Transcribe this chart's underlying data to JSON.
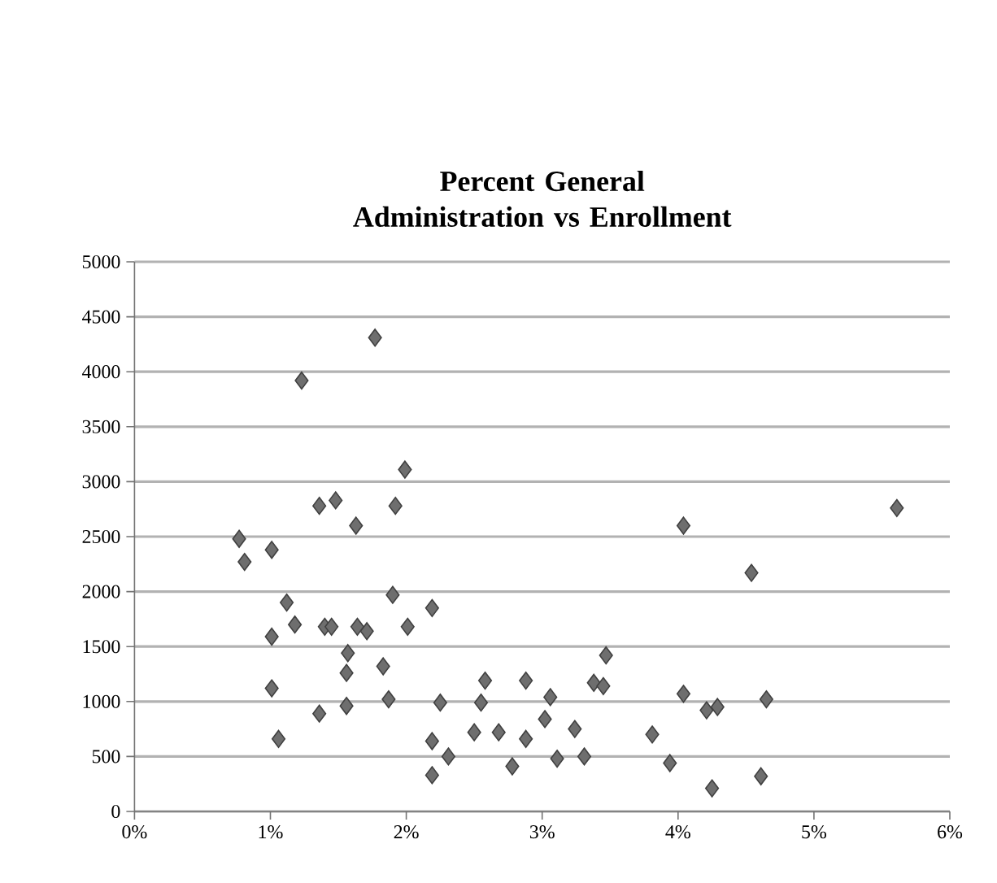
{
  "chart_data": {
    "type": "scatter",
    "title": "Percent General Administration vs Enrollment",
    "x": [
      1.77,
      1.23,
      1.99,
      1.36,
      1.48,
      1.92,
      1.63,
      0.77,
      1.01,
      0.81,
      1.9,
      2.19,
      1.12,
      1.18,
      1.01,
      1.4,
      1.45,
      1.64,
      1.71,
      2.01,
      1.57,
      1.83,
      1.56,
      1.01,
      1.87,
      2.25,
      1.36,
      1.56,
      2.55,
      2.58,
      2.88,
      3.06,
      1.06,
      2.19,
      2.31,
      2.5,
      2.68,
      2.88,
      2.78,
      2.19,
      3.02,
      3.11,
      3.24,
      3.31,
      3.38,
      3.45,
      3.47,
      3.81,
      3.94,
      4.04,
      4.04,
      4.21,
      4.29,
      4.25,
      4.54,
      4.61,
      4.65,
      5.61
    ],
    "values": [
      4310,
      3920,
      3110,
      2780,
      2830,
      2780,
      2600,
      2480,
      2380,
      2270,
      1970,
      1850,
      1900,
      1700,
      1590,
      1680,
      1680,
      1680,
      1640,
      1680,
      1440,
      1320,
      1260,
      1120,
      1020,
      990,
      890,
      960,
      990,
      1190,
      1190,
      1040,
      660,
      640,
      500,
      720,
      720,
      660,
      410,
      330,
      840,
      480,
      750,
      500,
      1170,
      1140,
      1420,
      700,
      440,
      2600,
      1070,
      920,
      950,
      210,
      2170,
      320,
      1020,
      2760
    ],
    "color": "#6e6e6e",
    "marker": "diamond",
    "grid": "y",
    "xlim": [
      0,
      6
    ],
    "xticks": [
      {
        "value": 0,
        "label": "0%"
      },
      {
        "value": 1,
        "label": "1%"
      },
      {
        "value": 2,
        "label": "2%"
      },
      {
        "value": 3,
        "label": "3%"
      },
      {
        "value": 4,
        "label": "4%"
      },
      {
        "value": 5,
        "label": "5%"
      },
      {
        "value": 6,
        "label": "6%"
      }
    ],
    "ylim": [
      0,
      5000
    ],
    "yticks": [
      0,
      500,
      1000,
      1500,
      2000,
      2500,
      3000,
      3500,
      4000,
      4500,
      5000
    ]
  }
}
